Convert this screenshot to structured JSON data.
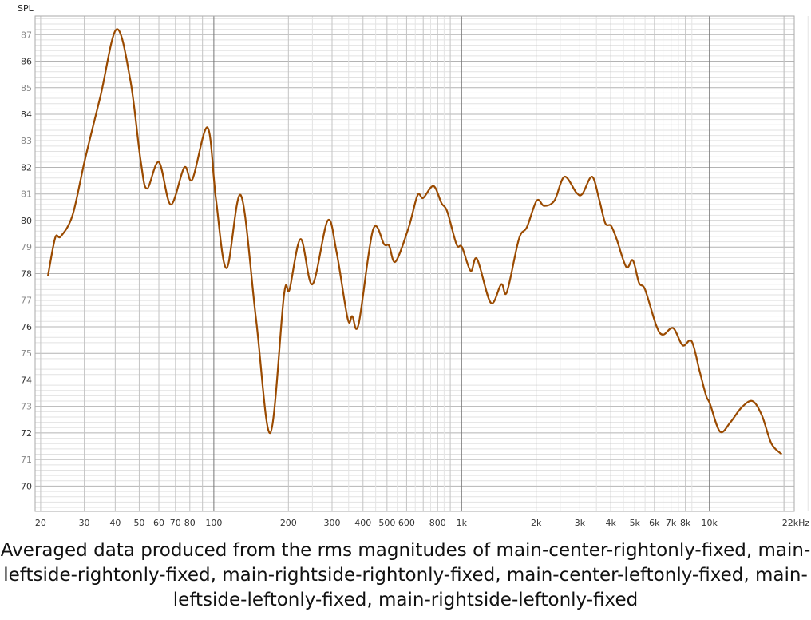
{
  "chart_data": {
    "type": "line",
    "ylabel": "SPL",
    "xlabel_unit": "kHz",
    "xscale": "log",
    "xlim": [
      19,
      22000
    ],
    "ylim": [
      69.05,
      87.7
    ],
    "grid": true,
    "y_ticks": [
      70,
      71,
      72,
      73,
      74,
      75,
      76,
      77,
      78,
      79,
      80,
      81,
      82,
      83,
      84,
      85,
      86,
      87
    ],
    "x_ticks": [
      {
        "v": 20,
        "label": "20"
      },
      {
        "v": 30,
        "label": "30"
      },
      {
        "v": 40,
        "label": "40"
      },
      {
        "v": 50,
        "label": "50"
      },
      {
        "v": 60,
        "label": "60"
      },
      {
        "v": 70,
        "label": "70"
      },
      {
        "v": 80,
        "label": "80"
      },
      {
        "v": 100,
        "label": "100"
      },
      {
        "v": 200,
        "label": "200"
      },
      {
        "v": 300,
        "label": "300"
      },
      {
        "v": 400,
        "label": "400"
      },
      {
        "v": 500,
        "label": "500"
      },
      {
        "v": 600,
        "label": "600"
      },
      {
        "v": 800,
        "label": "800"
      },
      {
        "v": 1000,
        "label": "1k"
      },
      {
        "v": 2000,
        "label": "2k"
      },
      {
        "v": 3000,
        "label": "3k"
      },
      {
        "v": 4000,
        "label": "4k"
      },
      {
        "v": 5000,
        "label": "5k"
      },
      {
        "v": 6000,
        "label": "6k"
      },
      {
        "v": 7000,
        "label": "7k"
      },
      {
        "v": 8000,
        "label": "8k"
      },
      {
        "v": 10000,
        "label": "10k"
      },
      {
        "v": 22000,
        "label": "22kHz"
      }
    ],
    "series": [
      {
        "name": "Averaged",
        "color": "#9a4a00",
        "x": [
          21.4,
          22.9,
          24.1,
          26.9,
          30.2,
          34.9,
          40.5,
          46,
          50.6,
          53.7,
          60,
          67,
          76,
          81.9,
          94.3,
          102,
          112.6,
          128.6,
          148,
          169,
          192,
          202,
          224,
          250,
          288,
          313,
          347,
          362,
          384,
          439,
          487,
          510,
          541,
          612,
          664,
          700,
          770,
          830,
          874,
          954,
          1003,
          1088,
          1155,
          1312,
          1445,
          1523,
          1703,
          1834,
          2010,
          2155,
          2370,
          2600,
          2906,
          3070,
          3360,
          3590,
          3800,
          4010,
          4222,
          4620,
          4910,
          5200,
          5500,
          6100,
          6490,
          7140,
          7800,
          8480,
          9145,
          9700,
          10050,
          11040,
          12150,
          13460,
          14920,
          16300,
          17800,
          19580
        ],
        "y": [
          77.9,
          79.35,
          79.4,
          80.2,
          82.3,
          84.7,
          87.2,
          85.3,
          82.3,
          81.2,
          82.2,
          80.6,
          82.0,
          81.55,
          83.5,
          80.8,
          78.2,
          80.95,
          76.3,
          72.0,
          77.2,
          77.4,
          79.3,
          77.6,
          80.0,
          78.8,
          76.3,
          76.4,
          76.1,
          79.65,
          79.1,
          79.05,
          78.45,
          79.75,
          80.95,
          80.85,
          81.3,
          80.65,
          80.35,
          79.1,
          79.0,
          78.1,
          78.55,
          76.9,
          77.6,
          77.3,
          79.3,
          79.75,
          80.75,
          80.55,
          80.75,
          81.65,
          81.05,
          81.0,
          81.65,
          80.8,
          79.9,
          79.8,
          79.3,
          78.25,
          78.5,
          77.65,
          77.4,
          76.05,
          75.7,
          75.95,
          75.3,
          75.45,
          74.3,
          73.4,
          73.1,
          72.05,
          72.4,
          72.95,
          73.2,
          72.65,
          71.6,
          71.2
        ]
      }
    ]
  },
  "caption": "Averaged data produced from the rms magnitudes of main-center-rightonly-fixed, main-leftside-rightonly-fixed, main-rightside-rightonly-fixed, main-center-leftonly-fixed, main-leftside-leftonly-fixed, main-rightside-leftonly-fixed"
}
